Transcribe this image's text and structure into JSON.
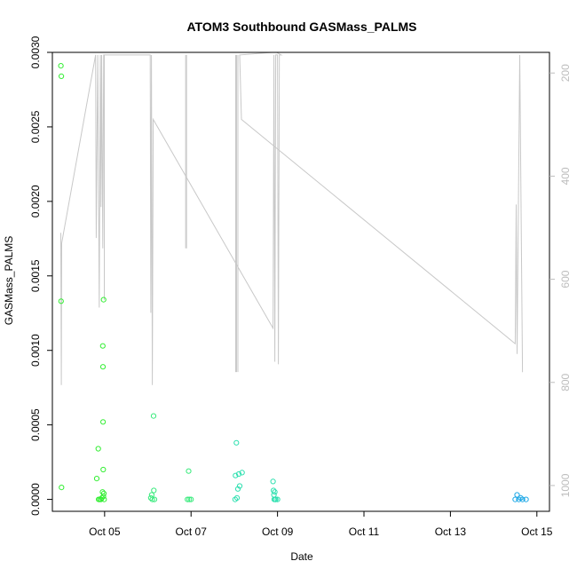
{
  "chart_data": {
    "type": "scatter",
    "title": "ATOM3 Southbound GASMass_PALMS",
    "xlabel": "Date",
    "ylabel": "GASMass_PALMS",
    "x_is_date": true,
    "xlim_days": [
      "2017-10-03T19:00",
      "2017-10-15T07:00"
    ],
    "ylim": [
      -8e-05,
      0.003
    ],
    "x_ticks": [
      {
        "date": "2017-10-05T00:00",
        "label": "Oct 05"
      },
      {
        "date": "2017-10-07T00:00",
        "label": "Oct 07"
      },
      {
        "date": "2017-10-09T00:00",
        "label": "Oct 09"
      },
      {
        "date": "2017-10-11T00:00",
        "label": "Oct 11"
      },
      {
        "date": "2017-10-13T00:00",
        "label": "Oct 13"
      },
      {
        "date": "2017-10-15T00:00",
        "label": "Oct 15"
      }
    ],
    "y_ticks": [
      {
        "value": 0.0,
        "label": "0.0000"
      },
      {
        "value": 0.0005,
        "label": "0.0005"
      },
      {
        "value": 0.001,
        "label": "0.0010"
      },
      {
        "value": 0.0015,
        "label": "0.0015"
      },
      {
        "value": 0.002,
        "label": "0.0020"
      },
      {
        "value": 0.0025,
        "label": "0.0025"
      },
      {
        "value": 0.003,
        "label": "0.0030"
      }
    ],
    "right_axis": {
      "reversed": true,
      "ylim": [
        1050,
        160
      ],
      "ticks": [
        {
          "value": 200,
          "label": "200"
        },
        {
          "value": 400,
          "label": "400"
        },
        {
          "value": 600,
          "label": "600"
        },
        {
          "value": 800,
          "label": "800"
        },
        {
          "value": 1000,
          "label": "1000"
        }
      ],
      "color": "#bdbdbd"
    },
    "points": [
      {
        "date": "2017-10-03T23:45",
        "y": 0.00291,
        "color": "#33ee33"
      },
      {
        "date": "2017-10-04T00:00",
        "y": 0.00284,
        "color": "#33ee33"
      },
      {
        "date": "2017-10-03T23:50",
        "y": 0.00133,
        "color": "#33ee33"
      },
      {
        "date": "2017-10-04T00:05",
        "y": 8e-05,
        "color": "#33ee33"
      },
      {
        "date": "2017-10-04T19:40",
        "y": 0.00014,
        "color": "#33ee33"
      },
      {
        "date": "2017-10-04T20:30",
        "y": 0.00034,
        "color": "#33ee33"
      },
      {
        "date": "2017-10-04T20:40",
        "y": 0.0,
        "color": "#33ee33"
      },
      {
        "date": "2017-10-04T21:20",
        "y": 0.0,
        "color": "#33ee33"
      },
      {
        "date": "2017-10-04T22:00",
        "y": 0.0,
        "color": "#33ee33"
      },
      {
        "date": "2017-10-04T22:30",
        "y": 1e-05,
        "color": "#33ee33"
      },
      {
        "date": "2017-10-04T22:50",
        "y": 5e-05,
        "color": "#33ee33"
      },
      {
        "date": "2017-10-04T23:00",
        "y": 0.00103,
        "color": "#33ee33"
      },
      {
        "date": "2017-10-04T23:05",
        "y": 0.00089,
        "color": "#33ee33"
      },
      {
        "date": "2017-10-04T23:10",
        "y": 0.00052,
        "color": "#33ee33"
      },
      {
        "date": "2017-10-04T23:15",
        "y": 0.0002,
        "color": "#33ee33"
      },
      {
        "date": "2017-10-04T23:20",
        "y": 2e-05,
        "color": "#33ee33"
      },
      {
        "date": "2017-10-04T23:25",
        "y": 0.00134,
        "color": "#33ee33"
      },
      {
        "date": "2017-10-04T23:35",
        "y": 4e-05,
        "color": "#33ee33"
      },
      {
        "date": "2017-10-04T23:45",
        "y": 0.0,
        "color": "#33ee33"
      },
      {
        "date": "2017-10-06T01:40",
        "y": 1e-05,
        "color": "#38ea7c"
      },
      {
        "date": "2017-10-06T02:10",
        "y": 3e-05,
        "color": "#38ea7c"
      },
      {
        "date": "2017-10-06T02:30",
        "y": 0.0,
        "color": "#38ea7c"
      },
      {
        "date": "2017-10-06T03:10",
        "y": 0.00056,
        "color": "#38ea7c"
      },
      {
        "date": "2017-10-06T03:20",
        "y": 6e-05,
        "color": "#38ea7c"
      },
      {
        "date": "2017-10-06T03:40",
        "y": 0.0,
        "color": "#38ea7c"
      },
      {
        "date": "2017-10-06T22:00",
        "y": 0.0,
        "color": "#38ea7c"
      },
      {
        "date": "2017-10-06T22:40",
        "y": 0.00019,
        "color": "#38ea7c"
      },
      {
        "date": "2017-10-06T23:00",
        "y": 0.0,
        "color": "#38ea7c"
      },
      {
        "date": "2017-10-07T00:00",
        "y": 0.0,
        "color": "#38ea7c"
      },
      {
        "date": "2017-10-08T00:30",
        "y": 0.0,
        "color": "#2fe0b0"
      },
      {
        "date": "2017-10-08T00:40",
        "y": 0.00016,
        "color": "#2fe0b0"
      },
      {
        "date": "2017-10-08T01:10",
        "y": 0.00038,
        "color": "#2fe0b0"
      },
      {
        "date": "2017-10-08T01:30",
        "y": 1e-05,
        "color": "#2fe0b0"
      },
      {
        "date": "2017-10-08T02:00",
        "y": 7e-05,
        "color": "#2fe0b0"
      },
      {
        "date": "2017-10-08T02:30",
        "y": 0.00017,
        "color": "#2fe0b0"
      },
      {
        "date": "2017-10-08T03:00",
        "y": 9e-05,
        "color": "#2fe0b0"
      },
      {
        "date": "2017-10-08T04:20",
        "y": 0.00018,
        "color": "#2fe0b0"
      },
      {
        "date": "2017-10-08T21:30",
        "y": 0.00012,
        "color": "#2fe0b0"
      },
      {
        "date": "2017-10-08T21:45",
        "y": 6e-05,
        "color": "#2fe0b0"
      },
      {
        "date": "2017-10-08T22:00",
        "y": 3e-05,
        "color": "#2fe0b0"
      },
      {
        "date": "2017-10-08T22:10",
        "y": 0.0,
        "color": "#2fe0b0"
      },
      {
        "date": "2017-10-08T22:30",
        "y": 5e-05,
        "color": "#2fe0b0"
      },
      {
        "date": "2017-10-08T22:45",
        "y": 0.0,
        "color": "#2fe0b0"
      },
      {
        "date": "2017-10-08T23:00",
        "y": 0.0,
        "color": "#2fe0b0"
      },
      {
        "date": "2017-10-09T00:00",
        "y": 0.0,
        "color": "#2fe0b0"
      },
      {
        "date": "2017-10-14T12:00",
        "y": 0.0,
        "color": "#1ea8e6"
      },
      {
        "date": "2017-10-14T13:00",
        "y": 3e-05,
        "color": "#1ea8e6"
      },
      {
        "date": "2017-10-14T14:00",
        "y": 0.0,
        "color": "#1ea8e6"
      },
      {
        "date": "2017-10-14T15:00",
        "y": 1e-05,
        "color": "#1ea8e6"
      },
      {
        "date": "2017-10-14T16:00",
        "y": 0.0,
        "color": "#1ea8e6"
      },
      {
        "date": "2017-10-14T18:00",
        "y": 0.0,
        "color": "#1ea8e6"
      }
    ],
    "pressure_line": {
      "color": "#c8c8c8",
      "points": [
        {
          "date": "2017-10-03T23:40",
          "v": 510
        },
        {
          "date": "2017-10-04T00:00",
          "v": 805
        },
        {
          "date": "2017-10-04T00:10",
          "v": 530
        },
        {
          "date": "2017-10-04T19:00",
          "v": 165
        },
        {
          "date": "2017-10-04T19:20",
          "v": 520
        },
        {
          "date": "2017-10-04T20:10",
          "v": 165
        },
        {
          "date": "2017-10-04T21:00",
          "v": 655
        },
        {
          "date": "2017-10-04T21:40",
          "v": 165
        },
        {
          "date": "2017-10-04T22:00",
          "v": 460
        },
        {
          "date": "2017-10-04T22:20",
          "v": 165
        },
        {
          "date": "2017-10-04T23:00",
          "v": 540
        },
        {
          "date": "2017-10-04T23:30",
          "v": 165
        },
        {
          "date": "2017-10-06T01:20",
          "v": 165
        },
        {
          "date": "2017-10-06T01:40",
          "v": 665
        },
        {
          "date": "2017-10-06T02:00",
          "v": 165
        },
        {
          "date": "2017-10-06T02:30",
          "v": 805
        },
        {
          "date": "2017-10-06T03:00",
          "v": 290
        },
        {
          "date": "2017-10-08T21:30",
          "v": 695
        },
        {
          "date": "2017-10-08T22:00",
          "v": 165
        },
        {
          "date": "2017-10-08T22:30",
          "v": 760
        },
        {
          "date": "2017-10-08T23:00",
          "v": 165
        },
        {
          "date": "2017-10-09T00:00",
          "v": 165
        },
        {
          "date": "2017-10-09T00:30",
          "v": 765
        },
        {
          "date": "2017-10-09T01:00",
          "v": 165
        },
        {
          "date": "2017-10-09T02:00",
          "v": 165
        },
        {
          "date": "2017-10-08T23:30",
          "v": 160
        },
        {
          "date": "2017-10-08T21:00",
          "v": 160
        },
        {
          "date": "2017-10-08T03:00",
          "v": 165
        },
        {
          "date": "2017-10-08T04:00",
          "v": 290
        },
        {
          "date": "2017-10-14T12:00",
          "v": 725
        },
        {
          "date": "2017-10-14T12:30",
          "v": 455
        },
        {
          "date": "2017-10-14T13:00",
          "v": 745
        },
        {
          "date": "2017-10-14T14:30",
          "v": 165
        },
        {
          "date": "2017-10-14T16:00",
          "v": 780
        }
      ]
    },
    "pressure_spikes": [
      {
        "date": "2017-10-06T21:00",
        "v_top": 165,
        "v_bottom": 540
      },
      {
        "date": "2017-10-06T21:30",
        "v_top": 165,
        "v_bottom": 540
      },
      {
        "date": "2017-10-08T00:45",
        "v_top": 165,
        "v_bottom": 780
      },
      {
        "date": "2017-10-08T01:15",
        "v_top": 165,
        "v_bottom": 780
      },
      {
        "date": "2017-10-08T02:00",
        "v_top": 165,
        "v_bottom": 780
      },
      {
        "date": "2017-10-04T23:50",
        "v_top": 165,
        "v_bottom": 640
      }
    ]
  }
}
